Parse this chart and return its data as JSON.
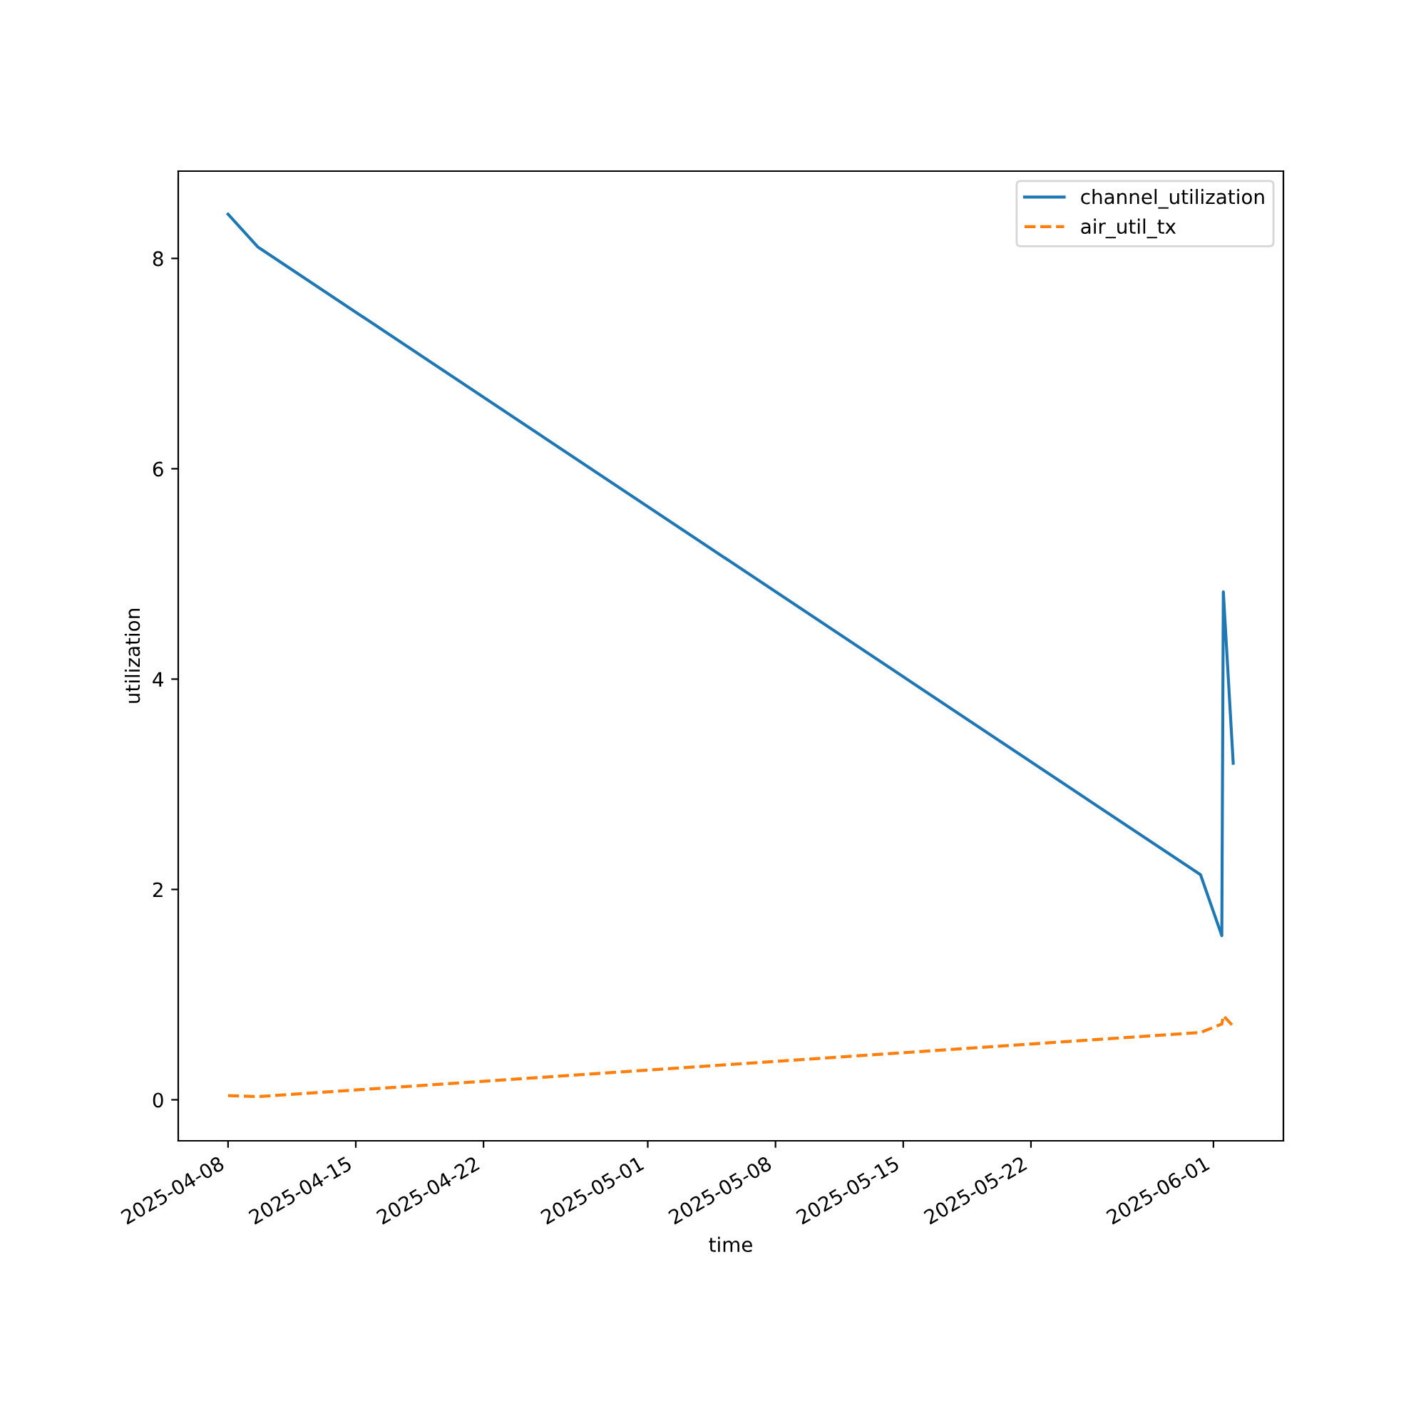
{
  "chart_data": {
    "type": "line",
    "xlabel": "time",
    "ylabel": "utilization",
    "x": [
      "2025-04-08T00:00",
      "2025-04-09T15:00",
      "2025-05-31T07:00",
      "2025-06-01T11:00",
      "2025-06-01T13:00",
      "2025-06-02T02:00"
    ],
    "series": [
      {
        "name": "channel_utilization",
        "color": "#1f77b4",
        "line_style": "solid",
        "values": [
          8.42,
          8.11,
          2.14,
          1.56,
          4.83,
          3.2
        ]
      },
      {
        "name": "air_util_tx",
        "color": "#ff7f0e",
        "line_style": "dashed",
        "values": [
          0.04,
          0.03,
          0.64,
          0.72,
          0.8,
          0.7
        ]
      }
    ],
    "xlim": [
      "2025-04-05T06:30",
      "2025-06-04T20:00"
    ],
    "xticks": [
      "2025-04-08",
      "2025-04-15",
      "2025-04-22",
      "2025-05-01",
      "2025-05-08",
      "2025-05-15",
      "2025-05-22",
      "2025-06-01"
    ],
    "ylim": [
      -0.39,
      8.83
    ],
    "yticks": [
      0,
      2,
      4,
      6,
      8
    ],
    "grid": false,
    "legend": "top right",
    "marker": "none"
  }
}
